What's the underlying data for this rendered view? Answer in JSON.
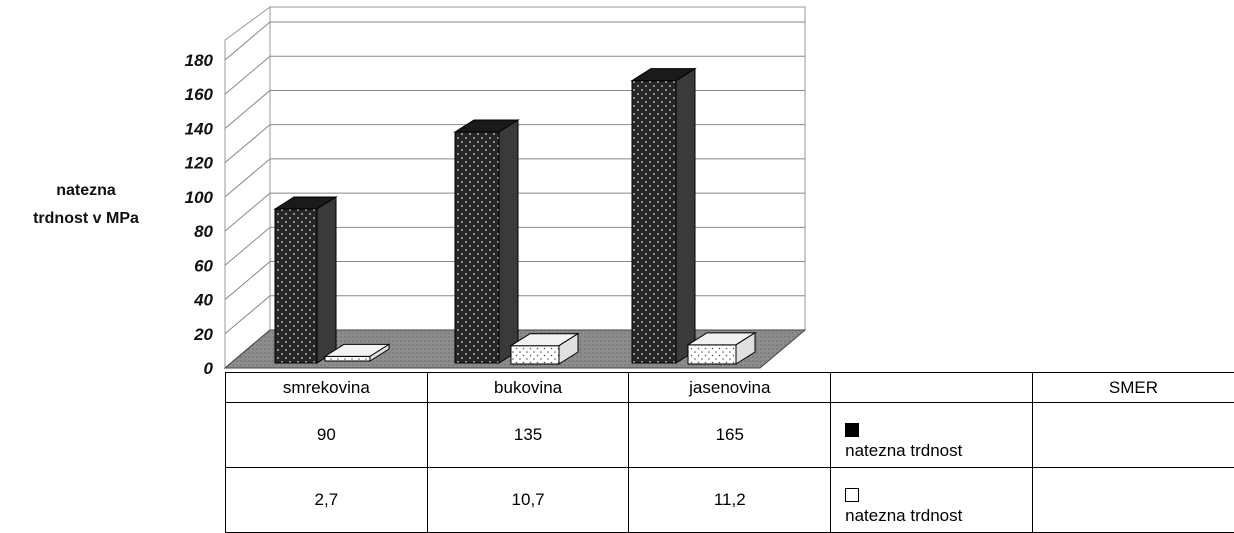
{
  "chart_data": {
    "type": "bar",
    "ylabel": [
      "natezna",
      "trdnost v MPa"
    ],
    "ylim": [
      0,
      180
    ],
    "yticks": [
      0,
      20,
      40,
      60,
      80,
      100,
      120,
      140,
      160,
      180
    ],
    "categories": [
      "smrekovina",
      "bukovina",
      "jasenovina"
    ],
    "series": [
      {
        "name": "natezna trdnost",
        "values": [
          90,
          135,
          165
        ],
        "value_labels": [
          "90",
          "135",
          "165"
        ],
        "color": "#2a2a2a",
        "pattern": "dark-dotted"
      },
      {
        "name": "natezna trdnost",
        "values": [
          2.7,
          10.7,
          11.2
        ],
        "value_labels": [
          "2,7",
          "10,7",
          "11,2"
        ],
        "color": "#ffffff",
        "pattern": "light-dotted"
      }
    ],
    "grid": true,
    "style": "3d",
    "floor_color": "#8a8a8a"
  },
  "table": {
    "extra_header": "SMER"
  }
}
